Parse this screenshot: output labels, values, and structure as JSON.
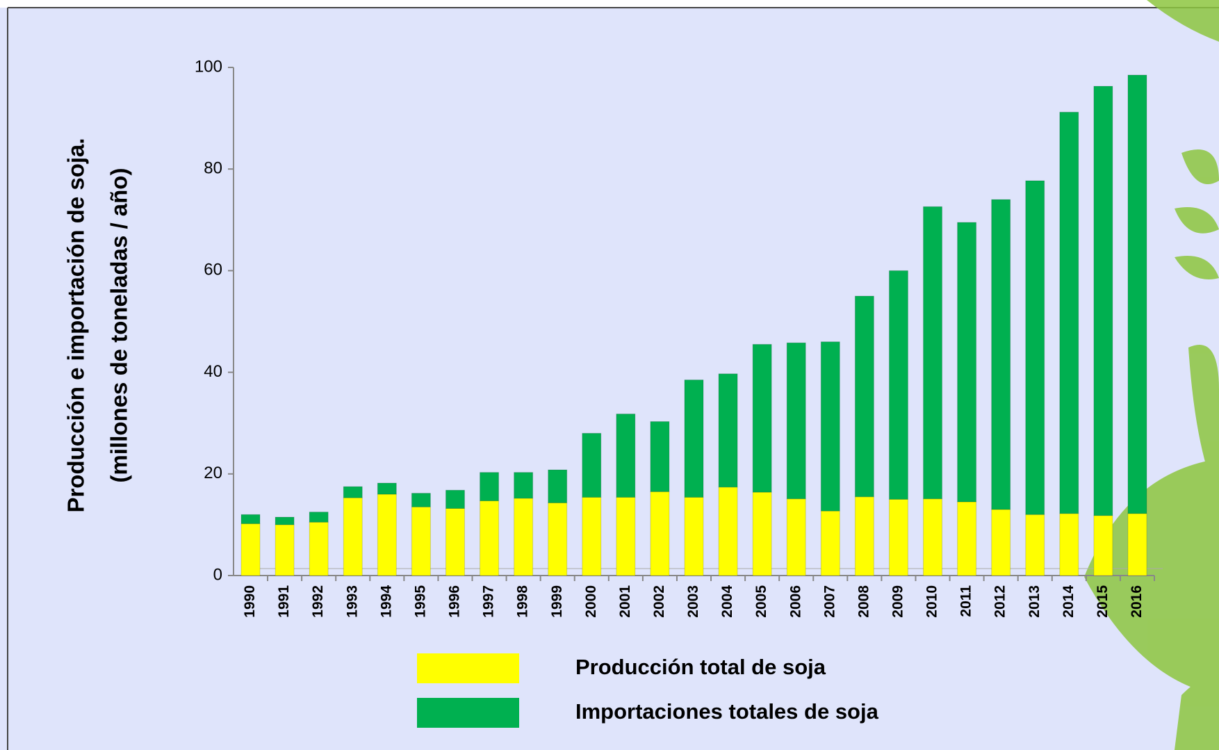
{
  "chart_data": {
    "type": "stacked_bar",
    "y_label": "Producción e importación de soja.",
    "y_label_2": "(millones de toneladas / año)",
    "categories": [
      "1990",
      "1991",
      "1992",
      "1993",
      "1994",
      "1995",
      "1996",
      "1997",
      "1998",
      "1999",
      "2000",
      "2001",
      "2002",
      "2003",
      "2004",
      "2005",
      "2006",
      "2007",
      "2008",
      "2009",
      "2010",
      "2011",
      "2012",
      "2013",
      "2014",
      "2015",
      "2016"
    ],
    "series": [
      {
        "name": "Producción total de soja",
        "color": "#ffff00",
        "values": [
          10.2,
          10,
          10.5,
          15.3,
          16,
          13.5,
          13.2,
          14.7,
          15.2,
          14.3,
          15.4,
          15.4,
          16.5,
          15.4,
          17.4,
          16.4,
          15.1,
          12.7,
          15.5,
          15,
          15.1,
          14.5,
          13,
          12,
          12.2,
          11.8,
          12.2
        ]
      },
      {
        "name": "Importaciones totales de soja",
        "color": "#00b050",
        "values": [
          1.8,
          1.5,
          2,
          2.2,
          2.2,
          2.7,
          3.6,
          5.6,
          5.1,
          6.5,
          12.6,
          16.4,
          13.8,
          23.1,
          22.3,
          29.1,
          30.7,
          33.3,
          39.5,
          45,
          57.5,
          55,
          61,
          65.7,
          79,
          84.5,
          86.3
        ]
      }
    ],
    "ylim": [
      0,
      100
    ],
    "yticks": [
      0,
      20,
      40,
      60,
      80,
      100
    ]
  }
}
